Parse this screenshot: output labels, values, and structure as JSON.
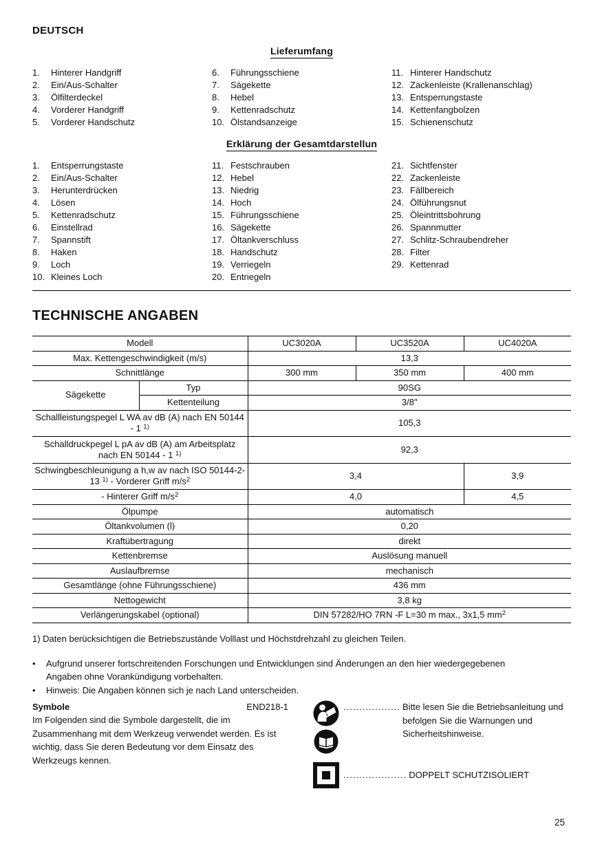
{
  "page": {
    "language": "DEUTSCH",
    "page_number": "25"
  },
  "lieferumfang": {
    "title": "Lieferumfang",
    "columns": [
      [
        {
          "n": "1.",
          "t": "Hinterer Handgriff"
        },
        {
          "n": "2.",
          "t": "Ein/Aus-Schalter"
        },
        {
          "n": "3.",
          "t": "Ölfilterdeckel"
        },
        {
          "n": "4.",
          "t": "Vorderer Handgriff"
        },
        {
          "n": "5.",
          "t": "Vorderer Handschutz"
        }
      ],
      [
        {
          "n": "6.",
          "t": "Führungsschiene"
        },
        {
          "n": "7.",
          "t": "Sägekette"
        },
        {
          "n": "8.",
          "t": "Hebel"
        },
        {
          "n": "9.",
          "t": "Kettenradschutz"
        },
        {
          "n": "10.",
          "t": "Ölstandsanzeige"
        }
      ],
      [
        {
          "n": "11.",
          "t": "Hinterer Handschutz"
        },
        {
          "n": "12.",
          "t": "Zackenleiste (Krallenanschlag)"
        },
        {
          "n": "13.",
          "t": "Entsperrungstaste"
        },
        {
          "n": "14.",
          "t": "Kettenfangbolzen"
        },
        {
          "n": "15.",
          "t": "Schienenschutz"
        }
      ]
    ]
  },
  "erklaerung": {
    "title": "Erklärung der Gesamtdarstellun",
    "columns": [
      [
        {
          "n": "1.",
          "t": "Entsperrungstaste"
        },
        {
          "n": "2.",
          "t": "Ein/Aus-Schalter"
        },
        {
          "n": "3.",
          "t": "Herunterdrücken"
        },
        {
          "n": "4.",
          "t": "Lösen"
        },
        {
          "n": "5.",
          "t": "Kettenradschutz"
        },
        {
          "n": "6.",
          "t": "Einstellrad"
        },
        {
          "n": "7.",
          "t": "Spannstift"
        },
        {
          "n": "8.",
          "t": "Haken"
        },
        {
          "n": "9.",
          "t": "Loch"
        },
        {
          "n": "10.",
          "t": "Kleines Loch"
        }
      ],
      [
        {
          "n": "11.",
          "t": "Festschrauben"
        },
        {
          "n": "12.",
          "t": "Hebel"
        },
        {
          "n": "13.",
          "t": "Niedrig"
        },
        {
          "n": "14.",
          "t": "Hoch"
        },
        {
          "n": "15.",
          "t": "Führungsschiene"
        },
        {
          "n": "16.",
          "t": "Sägekette"
        },
        {
          "n": "17.",
          "t": "Öltankverschluss"
        },
        {
          "n": "18.",
          "t": "Handschutz"
        },
        {
          "n": "19.",
          "t": "Verriegeln"
        },
        {
          "n": "20.",
          "t": "Entriegeln"
        }
      ],
      [
        {
          "n": "21.",
          "t": "Sichtfenster"
        },
        {
          "n": "22.",
          "t": "Zackenleiste"
        },
        {
          "n": "23.",
          "t": "Fällbereich"
        },
        {
          "n": "24.",
          "t": "Ölführungsnut"
        },
        {
          "n": "25.",
          "t": "Öleintrittsbohrung"
        },
        {
          "n": "26.",
          "t": "Spannmutter"
        },
        {
          "n": "27.",
          "t": "Schlitz-Schraubendreher"
        },
        {
          "n": "28.",
          "t": "Filter"
        },
        {
          "n": "29.",
          "t": "Kettenrad"
        }
      ]
    ]
  },
  "tech": {
    "title": "TECHNISCHE ANGABEN",
    "table": {
      "rows": [
        {
          "tall": false,
          "cells": [
            {
              "cs": 2,
              "text": "Modell"
            },
            {
              "text": "UC3020A"
            },
            {
              "text": "UC3520A"
            },
            {
              "text": "UC4020A"
            }
          ]
        },
        {
          "tall": false,
          "cells": [
            {
              "cs": 2,
              "text": "Max. Kettengeschwindigkeit (m/s)"
            },
            {
              "cs": 3,
              "text": "13,3"
            }
          ]
        },
        {
          "tall": false,
          "cells": [
            {
              "cs": 2,
              "text": "Schnittlänge"
            },
            {
              "text": "300 mm"
            },
            {
              "text": "350 mm"
            },
            {
              "text": "400 mm"
            }
          ]
        },
        {
          "tall": false,
          "cells": [
            {
              "rs": 2,
              "text": "Sägekette"
            },
            {
              "text": "Typ"
            },
            {
              "cs": 3,
              "text": "90SG"
            }
          ]
        },
        {
          "tall": false,
          "cells": [
            {
              "text": "Kettenteilung"
            },
            {
              "cs": 3,
              "text": "3/8\""
            }
          ]
        },
        {
          "tall": true,
          "cells": [
            {
              "cs": 2,
              "text": [
                "Schallleistungspegel L WA av dB (A) nach EN 50144 - 1 ",
                {
                  "sup": "1)"
                }
              ]
            },
            {
              "cs": 3,
              "text": "105,3"
            }
          ]
        },
        {
          "tall": true,
          "cells": [
            {
              "cs": 2,
              "text": [
                "Schalldruckpegel L pA av dB (A) am Arbeitsplatz nach EN 50144 - 1 ",
                {
                  "sup": "1)"
                }
              ]
            },
            {
              "cs": 3,
              "text": "92,3"
            }
          ]
        },
        {
          "tall": true,
          "cells": [
            {
              "cs": 2,
              "text": [
                "Schwingbeschleunigung a h,w av nach ISO 50144-2-13 ",
                {
                  "sup": "1)"
                },
                " - Vorderer Griff m/s",
                {
                  "sup": "2"
                }
              ]
            },
            {
              "cs": 2,
              "text": "3,4"
            },
            {
              "text": "3,9"
            }
          ]
        },
        {
          "tall": false,
          "cells": [
            {
              "cs": 2,
              "text": [
                "- Hinterer Griff m/s",
                {
                  "sup": "2"
                }
              ]
            },
            {
              "cs": 2,
              "text": "4,0"
            },
            {
              "text": "4,5"
            }
          ]
        },
        {
          "tall": false,
          "cells": [
            {
              "cs": 2,
              "text": "Ölpumpe"
            },
            {
              "cs": 3,
              "text": "automatisch"
            }
          ]
        },
        {
          "tall": false,
          "cells": [
            {
              "cs": 2,
              "text": "Öltankvolumen (l)"
            },
            {
              "cs": 3,
              "text": "0,20"
            }
          ]
        },
        {
          "tall": false,
          "cells": [
            {
              "cs": 2,
              "text": "Kraftübertragung"
            },
            {
              "cs": 3,
              "text": "direkt"
            }
          ]
        },
        {
          "tall": false,
          "cells": [
            {
              "cs": 2,
              "text": "Kettenbremse"
            },
            {
              "cs": 3,
              "text": "Auslösung manuell"
            }
          ]
        },
        {
          "tall": false,
          "cells": [
            {
              "cs": 2,
              "text": "Auslaufbremse"
            },
            {
              "cs": 3,
              "text": "mechanisch"
            }
          ]
        },
        {
          "tall": false,
          "cells": [
            {
              "cs": 2,
              "text": "Gesamtlänge (ohne Führungsschiene)"
            },
            {
              "cs": 3,
              "text": "436 mm"
            }
          ]
        },
        {
          "tall": false,
          "cells": [
            {
              "cs": 2,
              "text": "Nettogewicht"
            },
            {
              "cs": 3,
              "text": "3,8 kg"
            }
          ]
        },
        {
          "tall": false,
          "cells": [
            {
              "cs": 2,
              "text": "Verlängerungskabel (optional)"
            },
            {
              "cs": 3,
              "text": [
                "DIN 57282/HO 7RN -F L=30 m max., 3x1,5 mm",
                {
                  "sup": "2"
                }
              ]
            }
          ]
        }
      ]
    },
    "footnote": "1) Daten berücksichtigen die Betriebszustände Volllast und Höchstdrehzahl zu gleichen Teilen.",
    "bullets": [
      "Aufgrund unserer fortschreitenden Forschungen und Entwicklungen sind Änderungen an den hier wiedergegebenen Angaben ohne Vorankündigung vorbehalten.",
      "Hinweis: Die Angaben können sich je nach Land unterscheiden."
    ],
    "bullet_char": "•"
  },
  "symbols": {
    "title": "Symbole",
    "code": "END218-1",
    "intro": "Im Folgenden sind die Symbole dargestellt, die im Zusammenhang mit dem Werkzeug verwendet werden. Es ist wichtig, dass Sie deren Bedeutung vor dem Einsatz des Werkzeugs kennen.",
    "items": [
      {
        "icons": [
          "read-manual-icon",
          "open-book-icon"
        ],
        "dots": "..................",
        "text": "Bitte lesen Sie die Betriebsanleitung und befolgen Sie die Warnungen und Sicherheitshinweise."
      },
      {
        "icons": [
          "double-insulation-icon"
        ],
        "dots": "....................",
        "text": "DOPPELT SCHUTZISOLIERT"
      }
    ]
  }
}
